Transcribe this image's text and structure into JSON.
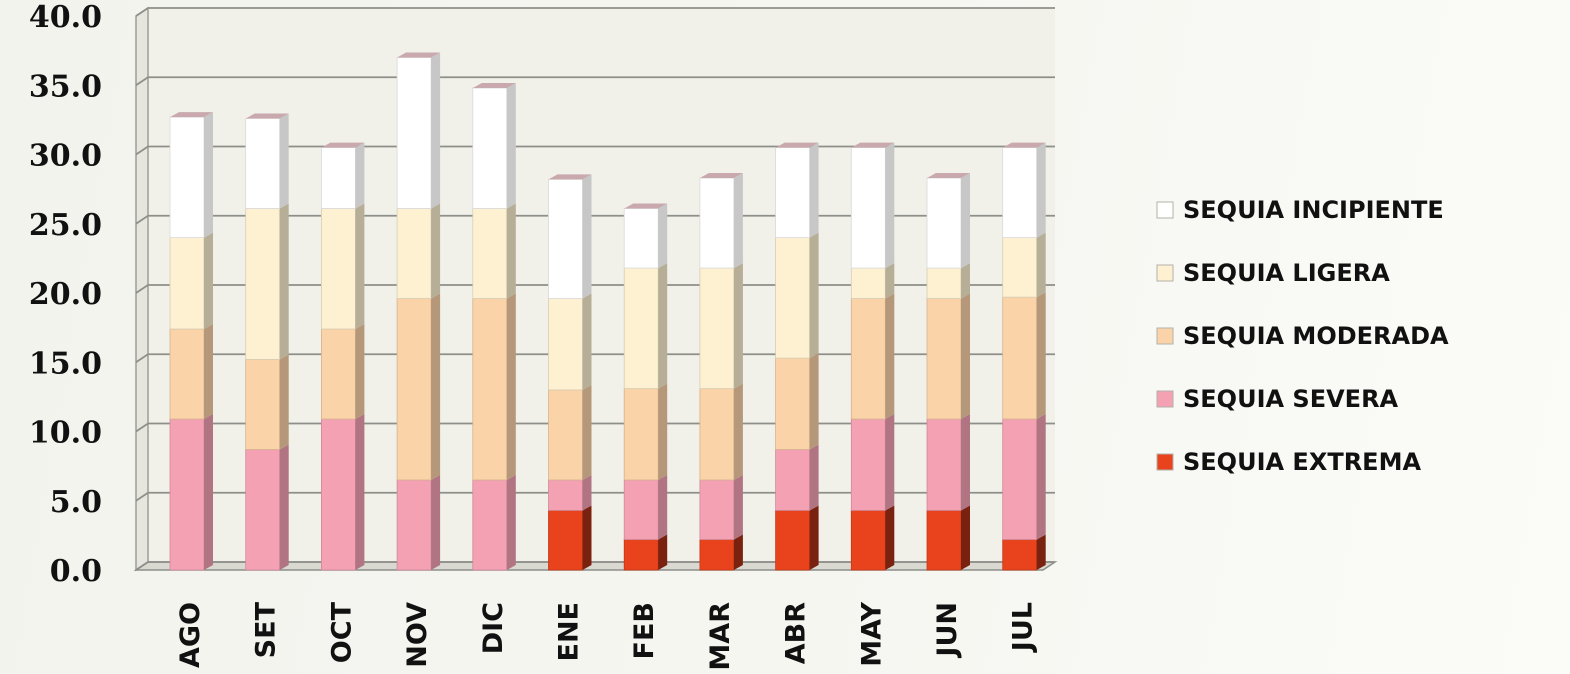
{
  "chart_data": {
    "type": "bar",
    "stacked": true,
    "categories": [
      "AGO",
      "SET",
      "OCT",
      "NOV",
      "DIC",
      "ENE",
      "FEB",
      "MAR",
      "ABR",
      "MAY",
      "JUN",
      "JUL"
    ],
    "series": [
      {
        "name": "SEQUIA EXTREMA",
        "color": "#e8431c",
        "values": [
          0.0,
          0.0,
          0.0,
          0.0,
          0.0,
          4.3,
          2.2,
          2.2,
          4.3,
          4.3,
          4.3,
          2.2
        ]
      },
      {
        "name": "SEQUIA SEVERA",
        "color": "#f4a1b4",
        "values": [
          10.9,
          8.7,
          10.9,
          6.5,
          6.5,
          2.2,
          4.3,
          4.3,
          4.4,
          6.6,
          6.6,
          8.7
        ]
      },
      {
        "name": "SEQUIA MODERADA",
        "color": "#fbd3a8",
        "values": [
          6.5,
          6.5,
          6.5,
          13.1,
          13.1,
          6.5,
          6.6,
          6.6,
          6.6,
          8.7,
          8.7,
          8.8
        ]
      },
      {
        "name": "SEQUIA LIGERA",
        "color": "#fdf1d2",
        "values": [
          6.6,
          10.9,
          8.7,
          6.5,
          6.5,
          6.6,
          8.7,
          8.7,
          8.7,
          2.2,
          2.2,
          4.3
        ]
      },
      {
        "name": "SEQUIA INCIPIENTE",
        "color": "#ffffff",
        "values": [
          8.7,
          6.5,
          4.4,
          10.9,
          8.7,
          8.6,
          4.3,
          6.5,
          6.5,
          8.7,
          6.5,
          6.5
        ]
      }
    ],
    "legend_order": [
      "SEQUIA INCIPIENTE",
      "SEQUIA LIGERA",
      "SEQUIA MODERADA",
      "SEQUIA SEVERA",
      "SEQUIA EXTREMA"
    ],
    "y_ticks": [
      "0.0",
      "5.0",
      "10.0",
      "15.0",
      "20.0",
      "25.0",
      "30.0",
      "35.0",
      "40.0"
    ],
    "ylim": [
      0,
      40
    ],
    "grid": true,
    "legend_position": "right",
    "title": "",
    "xlabel": "",
    "ylabel": ""
  }
}
